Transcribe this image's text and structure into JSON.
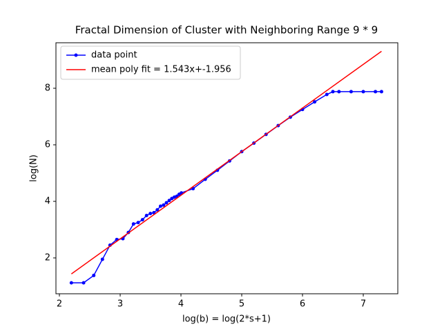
{
  "chart_data": {
    "type": "line",
    "title": "Fractal Dimension of Cluster with Neighboring Range 9 * 9",
    "x_label": "log(b) = log(2*s+1)",
    "y_label": "log(N)",
    "series": [
      {
        "name": "data point",
        "color": "#0000ff",
        "marker": true,
        "x": [
          2.197,
          2.398,
          2.565,
          2.708,
          2.833,
          2.944,
          3.045,
          3.135,
          3.219,
          3.296,
          3.367,
          3.434,
          3.497,
          3.555,
          3.611,
          3.664,
          3.714,
          3.761,
          3.807,
          3.85,
          3.892,
          3.932,
          3.97,
          4.007,
          4.2,
          4.4,
          4.6,
          4.8,
          5.0,
          5.2,
          5.4,
          5.6,
          5.8,
          6.0,
          6.2,
          6.4,
          6.5,
          6.6,
          6.8,
          7.0,
          7.2,
          7.3
        ],
        "values": [
          1.12,
          1.12,
          1.38,
          1.95,
          2.45,
          2.65,
          2.68,
          2.9,
          3.2,
          3.25,
          3.35,
          3.5,
          3.57,
          3.6,
          3.7,
          3.83,
          3.87,
          3.95,
          4.03,
          4.1,
          4.15,
          4.18,
          4.25,
          4.3,
          4.45,
          4.78,
          5.1,
          5.43,
          5.76,
          6.06,
          6.37,
          6.68,
          6.98,
          7.25,
          7.52,
          7.78,
          7.88,
          7.88,
          7.88,
          7.88,
          7.88,
          7.88
        ]
      },
      {
        "name": "mean poly fit = 1.543x+-1.956",
        "color": "#ff0000",
        "marker": false,
        "x": [
          2.197,
          7.3
        ],
        "values": [
          1.434,
          9.308
        ]
      }
    ],
    "xlim": [
      1.943,
      7.568
    ],
    "xticks": [
      2,
      3,
      4,
      5,
      6,
      7
    ],
    "ylim": [
      0.732,
      9.61
    ],
    "yticks": [
      2,
      4,
      6,
      8
    ],
    "legend": "upper left"
  }
}
